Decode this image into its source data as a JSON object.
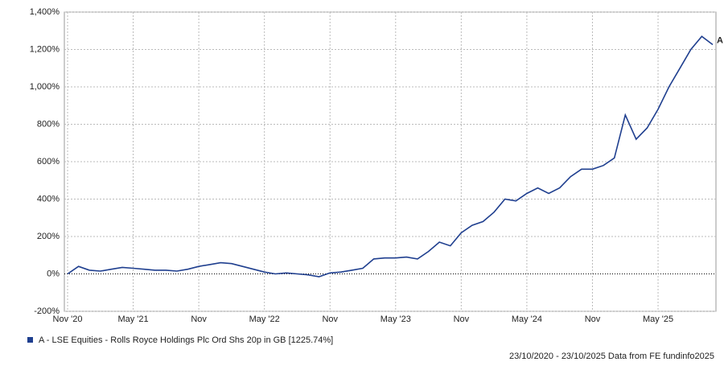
{
  "chart_data": {
    "type": "line",
    "categories": [
      "Nov '20",
      null,
      null,
      null,
      null,
      null,
      "May '21",
      null,
      null,
      null,
      null,
      null,
      "Nov",
      null,
      null,
      null,
      null,
      null,
      "May '22",
      null,
      null,
      null,
      null,
      null,
      "Nov",
      null,
      null,
      null,
      null,
      null,
      "May '23",
      null,
      null,
      null,
      null,
      null,
      "Nov",
      null,
      null,
      null,
      null,
      null,
      "May '24",
      null,
      null,
      null,
      null,
      null,
      "Nov",
      null,
      null,
      null,
      null,
      null,
      "May '25",
      null,
      null,
      null,
      null,
      null
    ],
    "series": [
      {
        "name": "A - LSE Equities - Rolls Royce Holdings Plc Ord Shs 20p in GB [1225.74%]",
        "color": "#1f3f8f",
        "values": [
          0,
          40,
          20,
          15,
          25,
          35,
          30,
          25,
          20,
          20,
          15,
          25,
          40,
          50,
          60,
          55,
          40,
          25,
          10,
          0,
          5,
          0,
          -5,
          -15,
          5,
          10,
          20,
          30,
          80,
          85,
          85,
          90,
          80,
          120,
          170,
          150,
          220,
          260,
          280,
          330,
          400,
          390,
          430,
          460,
          430,
          460,
          520,
          560,
          560,
          580,
          620,
          850,
          720,
          780,
          880,
          1000,
          1100,
          1200,
          1270,
          1225.74
        ]
      }
    ],
    "ylim": [
      -200,
      1400
    ],
    "yticks": [
      {
        "value": -200,
        "label": "-200%"
      },
      {
        "value": 0,
        "label": "0%"
      },
      {
        "value": 200,
        "label": "200%"
      },
      {
        "value": 400,
        "label": "400%"
      },
      {
        "value": 600,
        "label": "600%"
      },
      {
        "value": 800,
        "label": "800%"
      },
      {
        "value": 1000,
        "label": "1,000%"
      },
      {
        "value": 1200,
        "label": "1,200%"
      },
      {
        "value": 1400,
        "label": "1,400%"
      }
    ],
    "grid": true,
    "end_label": "A",
    "footer": "23/10/2020 - 23/10/2025 Data from FE fundinfo2025"
  }
}
